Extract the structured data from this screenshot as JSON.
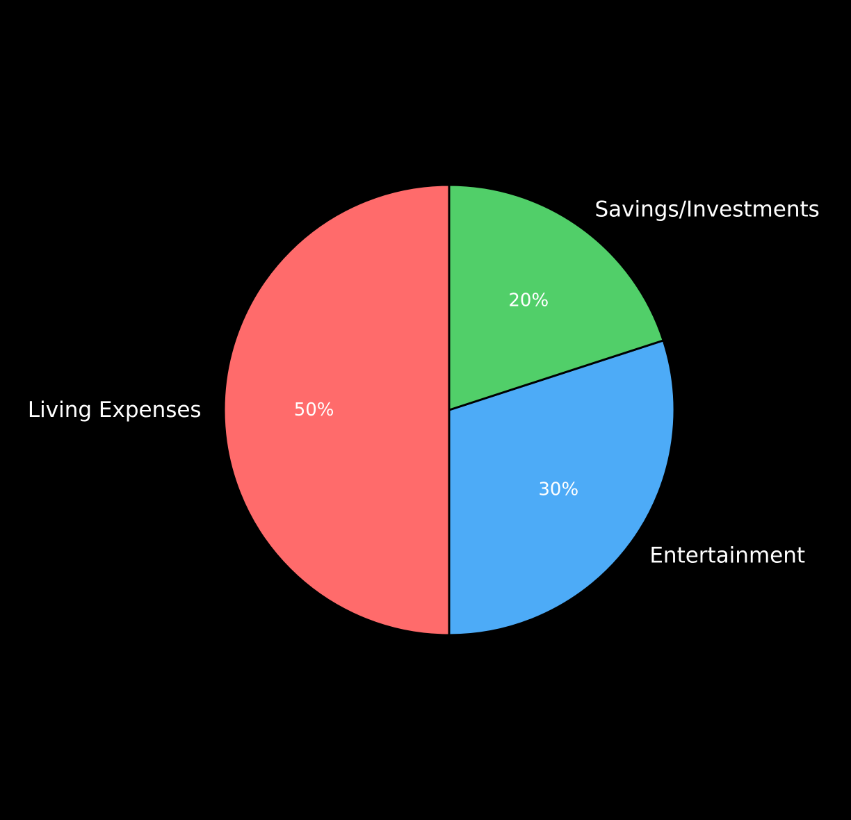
{
  "chart_data": {
    "type": "pie",
    "categories": [
      "Living Expenses",
      "Entertainment",
      "Savings/Investments"
    ],
    "values": [
      50,
      30,
      20
    ],
    "percent_labels": [
      "50%",
      "30%",
      "20%"
    ],
    "colors": [
      "#FF6B6B",
      "#4DABF7",
      "#51CF69"
    ],
    "background": "#000000",
    "wedge_edge_color": "#000000",
    "direction": "counterclockwise",
    "start": "top"
  }
}
